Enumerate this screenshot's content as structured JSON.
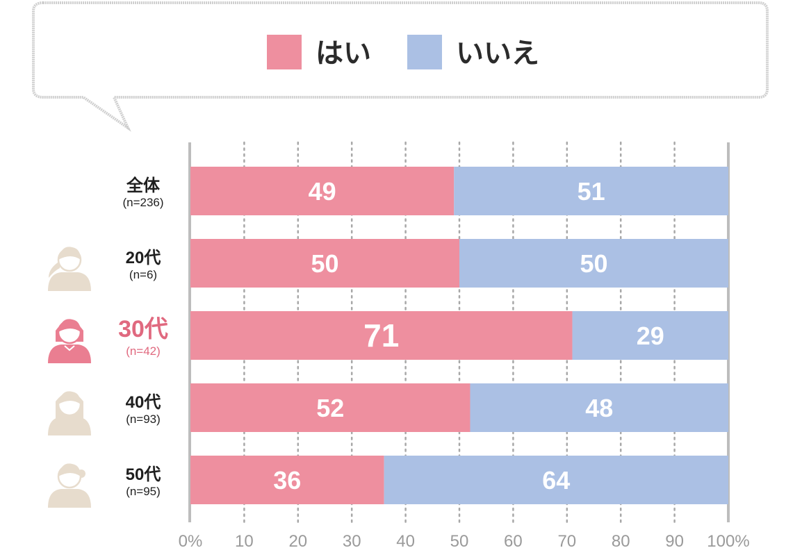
{
  "colors": {
    "yes": "#ee8f9f",
    "no": "#abc0e4",
    "highlight": "#e0697f",
    "avatar": "#e7dccd",
    "avatar_highlight": "#ea7e91"
  },
  "chart_data": {
    "type": "bar",
    "orientation": "horizontal",
    "stacked": true,
    "title": "",
    "xlabel": "",
    "ylabel": "",
    "xlim": [
      0,
      100
    ],
    "legend_position": "top",
    "x_ticks": [
      "0%",
      "10",
      "20",
      "30",
      "40",
      "50",
      "60",
      "70",
      "80",
      "90",
      "100%"
    ],
    "series": [
      {
        "name": "はい",
        "color": "#ee8f9f"
      },
      {
        "name": "いいえ",
        "color": "#abc0e4"
      }
    ],
    "categories": [
      {
        "label": "全体",
        "n": "(n=236)",
        "yes": 49,
        "no": 51,
        "highlight": false,
        "avatar": "none"
      },
      {
        "label": "20代",
        "n": "(n=6)",
        "yes": 50,
        "no": 50,
        "highlight": false,
        "avatar": "ponytail"
      },
      {
        "label": "30代",
        "n": "(n=42)",
        "yes": 71,
        "no": 29,
        "highlight": true,
        "avatar": "bob"
      },
      {
        "label": "40代",
        "n": "(n=93)",
        "yes": 52,
        "no": 48,
        "highlight": false,
        "avatar": "long"
      },
      {
        "label": "50代",
        "n": "(n=95)",
        "yes": 36,
        "no": 64,
        "highlight": false,
        "avatar": "bun"
      }
    ]
  }
}
